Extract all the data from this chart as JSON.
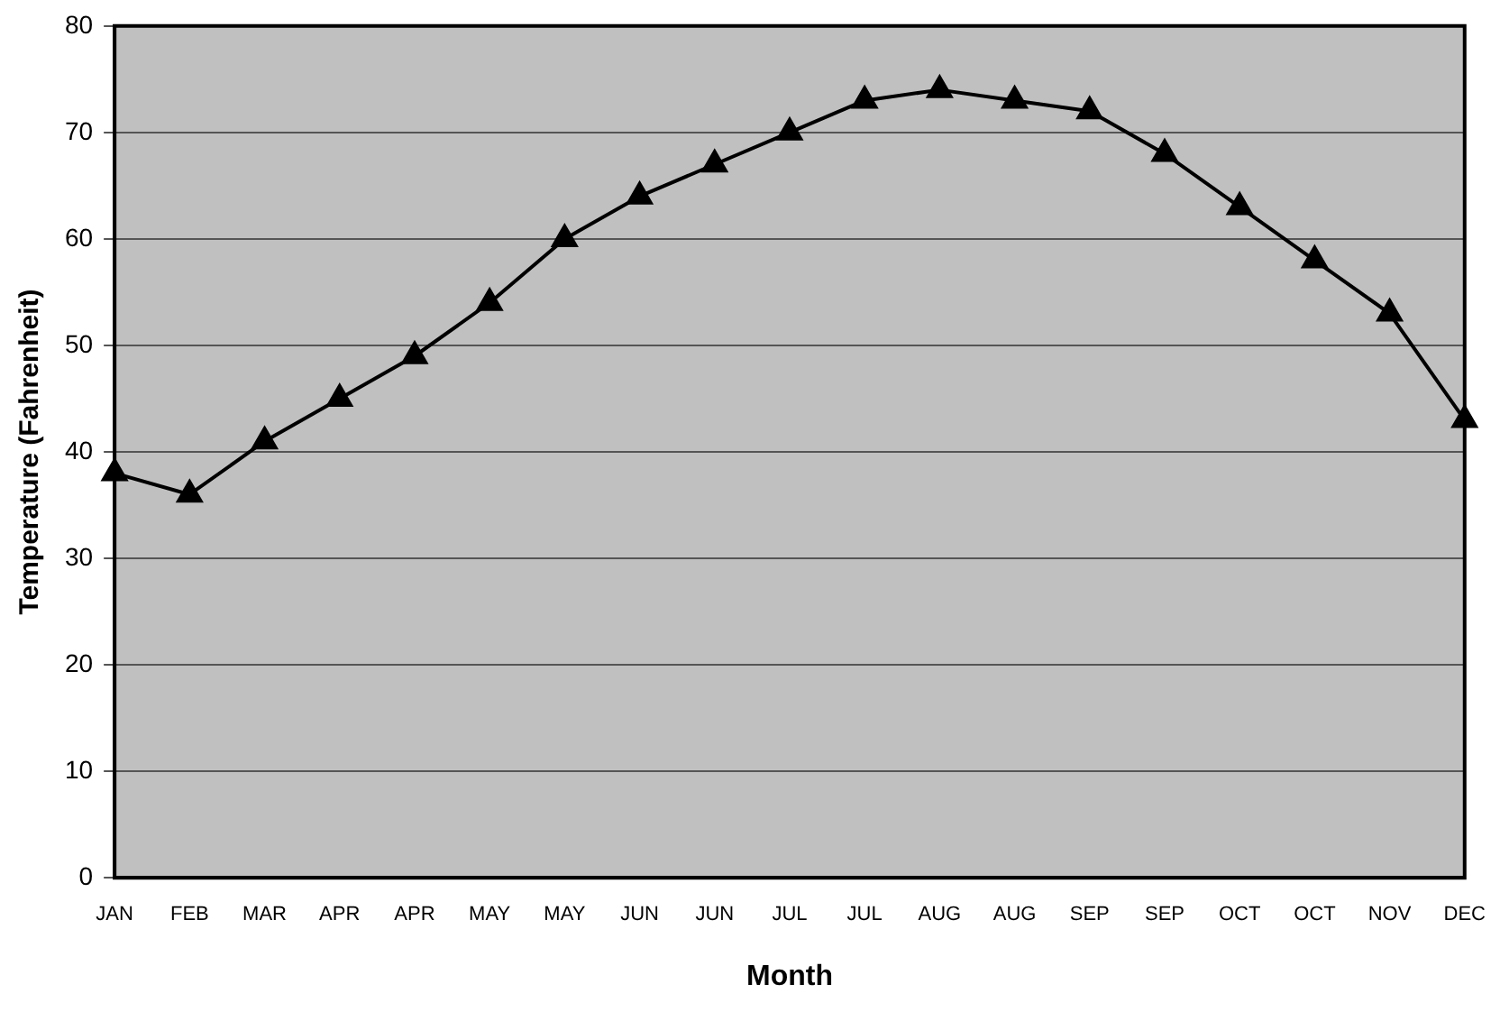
{
  "chart_data": {
    "type": "line",
    "xlabel": "Month",
    "ylabel": "Temperature (Fahrenheit)",
    "categories": [
      "JAN",
      "FEB",
      "MAR",
      "APR",
      "APR",
      "MAY",
      "MAY",
      "JUN",
      "JUN",
      "JUL",
      "JUL",
      "AUG",
      "AUG",
      "SEP",
      "SEP",
      "OCT",
      "OCT",
      "NOV",
      "DEC"
    ],
    "series": [
      {
        "color": "#000000",
        "values": [
          38,
          36,
          41,
          45,
          49,
          54,
          60,
          64,
          67,
          70,
          73,
          74,
          73,
          72,
          68,
          63,
          58,
          53,
          43
        ]
      }
    ],
    "ylim": [
      0,
      80
    ],
    "yticks": [
      0,
      10,
      20,
      30,
      40,
      50,
      60,
      70,
      80
    ],
    "grid": "y",
    "legend": false,
    "marker": "triangle",
    "line_style": "solid"
  }
}
